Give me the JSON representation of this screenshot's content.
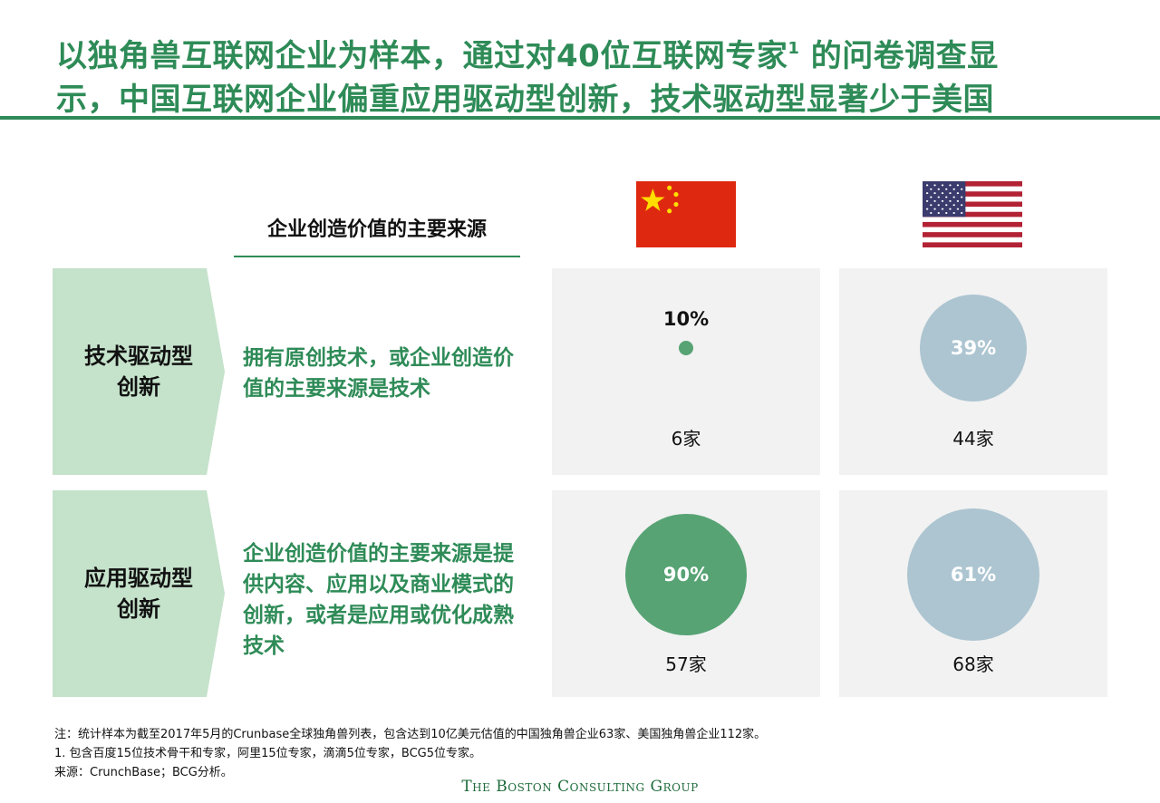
{
  "title": {
    "line1_a": "以独角兽互联网企业为样本，通过对40位互联网专家",
    "line1_sup": "1",
    "line1_b": " 的问卷调查显",
    "line2": "示，中国互联网企业偏重应用驱动型创新，技术驱动型显著少于美国"
  },
  "column_header": "企业创造价值的主要来源",
  "rows": [
    {
      "label": "技术驱动型创新",
      "description": "拥有原创技术，或企业创造价值的主要来源是技术"
    },
    {
      "label": "应用驱动型创新",
      "description": "企业创造价值的主要来源是提供内容、应用以及商业模式的创新，或者是应用或优化成熟技术"
    }
  ],
  "chart_data": {
    "type": "bubble",
    "columns": [
      "China",
      "United States"
    ],
    "rows": [
      "技术驱动型创新",
      "应用驱动型创新"
    ],
    "cells": [
      {
        "country": "China",
        "type": "技术驱动型创新",
        "pct": "10%",
        "count": "6家",
        "color": "#57a374",
        "value": 10
      },
      {
        "country": "United States",
        "type": "技术驱动型创新",
        "pct": "39%",
        "count": "44家",
        "color": "#adc5d1",
        "value": 39
      },
      {
        "country": "China",
        "type": "应用驱动型创新",
        "pct": "90%",
        "count": "57家",
        "color": "#57a374",
        "value": 90
      },
      {
        "country": "United States",
        "type": "应用驱动型创新",
        "pct": "61%",
        "count": "68家",
        "color": "#adc5d1",
        "value": 61
      }
    ]
  },
  "notes": [
    "注：统计样本为截至2017年5月的Crunbase全球独角兽列表，包含达到10亿美元估值的中国独角兽企业63家、美国独角兽企业112家。",
    "1. 包含百度15位技术骨干和专家，阿里15位专家，滴滴5位专家，BCG5位专家。",
    "来源：CrunchBase；BCG分析。"
  ],
  "logo": {
    "text": "The Boston Consulting Group"
  },
  "colors": {
    "brand_green": "#2e8b57",
    "bubble_green": "#57a374",
    "bubble_grey": "#adc5d1",
    "chevron_green": "#c5e2cb",
    "panel_bg": "#f2f2f2"
  }
}
